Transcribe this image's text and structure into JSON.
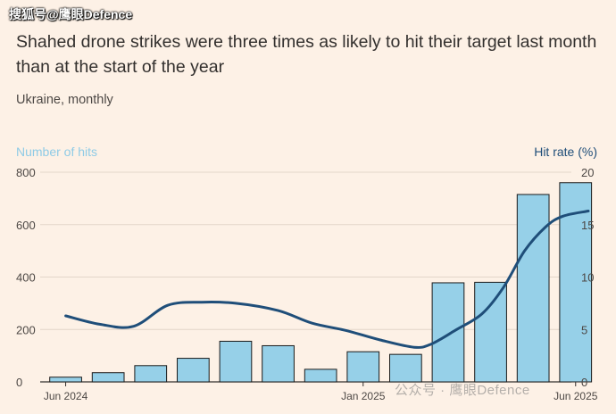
{
  "watermark_top": "搜狐号@鹰眼Defence",
  "watermark_bottom": "公众号 · 鹰眼Defence",
  "chart_data": {
    "type": "bar",
    "title": "Shahed drone strikes were three times as likely to hit their target last month than at the start of the year",
    "subtitle": "Ukraine, monthly",
    "categories": [
      "Jun 2024",
      "Jul 2024",
      "Aug 2024",
      "Sep 2024",
      "Oct 2024",
      "Nov 2024",
      "Dec 2024",
      "Jan 2025",
      "Feb 2025",
      "Mar 2025",
      "Apr 2025",
      "May 2025",
      "Jun 2025"
    ],
    "x_tick_labels": [
      "Jun 2024",
      "Jan 2025",
      "Jun 2025"
    ],
    "series": [
      {
        "name": "Number of hits",
        "type": "bar",
        "axis": "left",
        "color": "#96d0e8",
        "values": [
          18,
          35,
          62,
          90,
          155,
          138,
          48,
          115,
          105,
          378,
          380,
          715,
          760
        ]
      },
      {
        "name": "Hit rate (%)",
        "type": "line",
        "axis": "right",
        "color": "#1f4e79",
        "x": [
          0,
          0.8,
          1.6,
          2.4,
          3.2,
          4.0,
          5.0,
          5.8,
          6.6,
          7.4,
          8.2,
          8.6,
          9.2,
          9.8,
          10.3,
          10.8,
          11.3,
          11.7,
          12.3
        ],
        "values": [
          6.3,
          5.5,
          5.3,
          7.3,
          7.6,
          7.5,
          6.8,
          5.6,
          4.9,
          4.0,
          3.3,
          3.6,
          5.0,
          6.5,
          9.0,
          12.5,
          14.8,
          15.8,
          16.3
        ]
      }
    ],
    "ylabel_left": "Number of hits",
    "ylabel_right": "Hit rate (%)",
    "ylim_left": [
      0,
      800
    ],
    "ylim_right": [
      0,
      20
    ],
    "yticks_left": [
      0,
      200,
      400,
      600,
      800
    ],
    "yticks_right": [
      0,
      5,
      10,
      15,
      20
    ],
    "grid": true
  }
}
